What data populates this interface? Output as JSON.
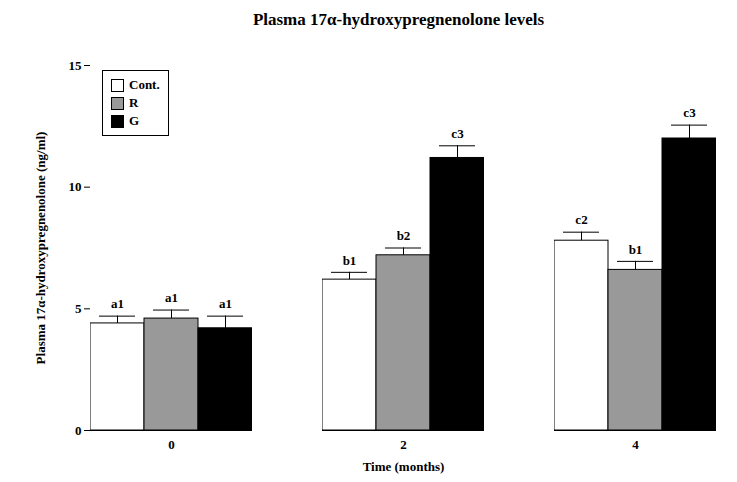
{
  "chart_data": {
    "type": "bar",
    "title": "Plasma 17α-hydroxypregnenolone levels",
    "x_label": "Time (months)",
    "y_label": "Plasma 17α-hydroxypregnenolone (ng/ml)",
    "categories": [
      "0",
      "2",
      "4"
    ],
    "series": [
      {
        "name": "Cont.",
        "color": "#ffffff",
        "values": [
          4.4,
          6.2,
          7.8
        ],
        "errors": [
          0.3,
          0.3,
          0.35
        ],
        "letters": [
          "a1",
          "b1",
          "c2"
        ]
      },
      {
        "name": "R",
        "color": "#999999",
        "values": [
          4.6,
          7.2,
          6.6
        ],
        "errors": [
          0.35,
          0.3,
          0.35
        ],
        "letters": [
          "a1",
          "b2",
          "b1"
        ]
      },
      {
        "name": "G",
        "color": "#000000",
        "values": [
          4.2,
          11.2,
          12.0
        ],
        "errors": [
          0.5,
          0.5,
          0.55
        ],
        "letters": [
          "a1",
          "c3",
          "c3"
        ]
      }
    ],
    "ylim": [
      0,
      15
    ],
    "yticks": [
      0,
      5,
      10,
      15
    ],
    "grid": false,
    "legend": "top-left"
  }
}
